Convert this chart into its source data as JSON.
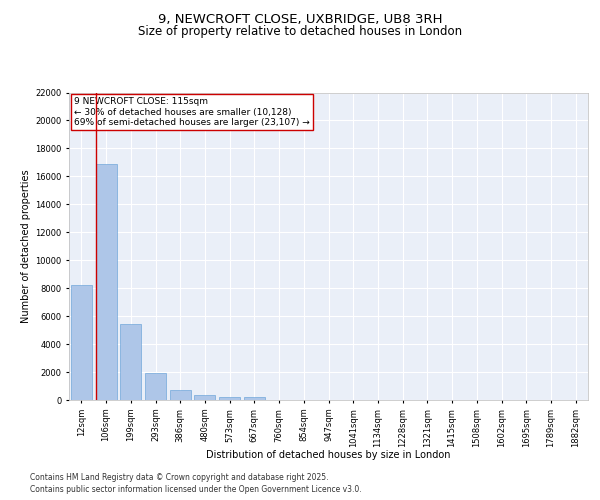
{
  "title_line1": "9, NEWCROFT CLOSE, UXBRIDGE, UB8 3RH",
  "title_line2": "Size of property relative to detached houses in London",
  "xlabel": "Distribution of detached houses by size in London",
  "ylabel": "Number of detached properties",
  "categories": [
    "12sqm",
    "106sqm",
    "199sqm",
    "293sqm",
    "386sqm",
    "480sqm",
    "573sqm",
    "667sqm",
    "760sqm",
    "854sqm",
    "947sqm",
    "1041sqm",
    "1134sqm",
    "1228sqm",
    "1321sqm",
    "1415sqm",
    "1508sqm",
    "1602sqm",
    "1695sqm",
    "1789sqm",
    "1882sqm"
  ],
  "values": [
    8200,
    16900,
    5450,
    1900,
    680,
    380,
    250,
    200,
    0,
    0,
    0,
    0,
    0,
    0,
    0,
    0,
    0,
    0,
    0,
    0,
    0
  ],
  "bar_color": "#aec6e8",
  "bar_edge_color": "#5b9bd5",
  "bg_color": "#eaeff8",
  "grid_color": "#ffffff",
  "vline_color": "#cc0000",
  "annotation_text": "9 NEWCROFT CLOSE: 115sqm\n← 30% of detached houses are smaller (10,128)\n69% of semi-detached houses are larger (23,107) →",
  "annotation_box_color": "#cc0000",
  "ylim": [
    0,
    22000
  ],
  "yticks": [
    0,
    2000,
    4000,
    6000,
    8000,
    10000,
    12000,
    14000,
    16000,
    18000,
    20000,
    22000
  ],
  "footer_line1": "Contains HM Land Registry data © Crown copyright and database right 2025.",
  "footer_line2": "Contains public sector information licensed under the Open Government Licence v3.0.",
  "title_fontsize": 9.5,
  "subtitle_fontsize": 8.5,
  "axis_label_fontsize": 7,
  "tick_fontsize": 6,
  "annotation_fontsize": 6.5,
  "footer_fontsize": 5.5
}
